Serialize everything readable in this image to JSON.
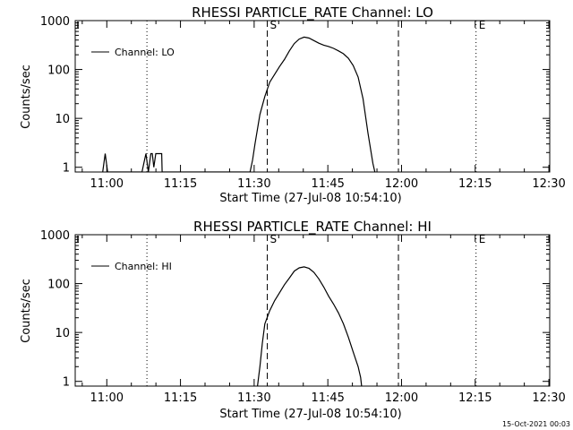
{
  "footer_timestamp": "15-Oct-2021 00:03",
  "chart_data": [
    {
      "type": "line",
      "title": "RHESSI PARTICLE_RATE Channel: LO",
      "xlabel": "Start Time (27-Jul-08 10:54:10)",
      "ylabel": "Counts/sec",
      "yscale": "log",
      "xlim": [
        -0.6,
        96.0
      ],
      "ylim": [
        0.8,
        1000
      ],
      "xticks": [
        {
          "min": 5.83,
          "label": "11:00"
        },
        {
          "min": 20.83,
          "label": "11:15"
        },
        {
          "min": 35.83,
          "label": "11:30"
        },
        {
          "min": 50.83,
          "label": "11:45"
        },
        {
          "min": 65.83,
          "label": "12:00"
        },
        {
          "min": 80.83,
          "label": "12:15"
        },
        {
          "min": 95.83,
          "label": "12:30"
        }
      ],
      "yticks": [
        {
          "value": 1,
          "label": "1"
        },
        {
          "value": 10,
          "label": "10"
        },
        {
          "value": 100,
          "label": "100"
        },
        {
          "value": 1000,
          "label": "1000"
        }
      ],
      "legend": {
        "label": "Channel: LO",
        "position": "top-left"
      },
      "vlines": [
        {
          "min": 14.0,
          "style": "dotted",
          "label": ""
        },
        {
          "min": 38.5,
          "style": "dashed",
          "label": "S"
        },
        {
          "min": 65.2,
          "style": "dashed",
          "label": ""
        },
        {
          "min": 81.0,
          "style": "dotted",
          "label": "E"
        },
        {
          "min": 96.0,
          "style": "dotted",
          "label": ""
        }
      ],
      "series": [
        {
          "name": "Channel: LO",
          "points": [
            [
              5.0,
              0.8
            ],
            [
              5.5,
              1.9
            ],
            [
              6.0,
              0.8
            ],
            [
              13.0,
              0.8
            ],
            [
              13.5,
              1.4
            ],
            [
              13.8,
              1.9
            ],
            [
              14.3,
              0.8
            ],
            [
              14.8,
              1.9
            ],
            [
              15.1,
              1.9
            ],
            [
              15.4,
              1.0
            ],
            [
              15.8,
              1.9
            ],
            [
              17.0,
              1.9
            ],
            [
              17.1,
              0.8
            ],
            [
              35.0,
              0.8
            ],
            [
              35.5,
              1.4
            ],
            [
              36.0,
              3.0
            ],
            [
              37.0,
              12
            ],
            [
              38.0,
              28
            ],
            [
              39.0,
              55
            ],
            [
              40.0,
              80
            ],
            [
              41.0,
              115
            ],
            [
              42.0,
              160
            ],
            [
              43.0,
              240
            ],
            [
              44.0,
              340
            ],
            [
              45.0,
              420
            ],
            [
              46.0,
              460
            ],
            [
              47.0,
              440
            ],
            [
              48.0,
              390
            ],
            [
              49.0,
              345
            ],
            [
              50.0,
              315
            ],
            [
              51.0,
              295
            ],
            [
              52.0,
              270
            ],
            [
              53.0,
              240
            ],
            [
              54.0,
              210
            ],
            [
              55.0,
              170
            ],
            [
              56.0,
              120
            ],
            [
              57.0,
              70
            ],
            [
              58.0,
              25
            ],
            [
              59.0,
              5
            ],
            [
              60.0,
              1.2
            ],
            [
              60.4,
              0.8
            ]
          ]
        }
      ]
    },
    {
      "type": "line",
      "title": "RHESSI PARTICLE_RATE Channel: HI",
      "xlabel": "Start Time (27-Jul-08 10:54:10)",
      "ylabel": "Counts/sec",
      "yscale": "log",
      "xlim": [
        -0.6,
        96.0
      ],
      "ylim": [
        0.8,
        1000
      ],
      "xticks": [
        {
          "min": 5.83,
          "label": "11:00"
        },
        {
          "min": 20.83,
          "label": "11:15"
        },
        {
          "min": 35.83,
          "label": "11:30"
        },
        {
          "min": 50.83,
          "label": "11:45"
        },
        {
          "min": 65.83,
          "label": "12:00"
        },
        {
          "min": 80.83,
          "label": "12:15"
        },
        {
          "min": 95.83,
          "label": "12:30"
        }
      ],
      "yticks": [
        {
          "value": 1,
          "label": "1"
        },
        {
          "value": 10,
          "label": "10"
        },
        {
          "value": 100,
          "label": "100"
        },
        {
          "value": 1000,
          "label": "1000"
        }
      ],
      "legend": {
        "label": "Channel: HI",
        "position": "top-left"
      },
      "vlines": [
        {
          "min": 14.0,
          "style": "dotted",
          "label": ""
        },
        {
          "min": 38.5,
          "style": "dashed",
          "label": "S"
        },
        {
          "min": 65.2,
          "style": "dashed",
          "label": ""
        },
        {
          "min": 81.0,
          "style": "dotted",
          "label": "E"
        },
        {
          "min": 96.0,
          "style": "dotted",
          "label": ""
        }
      ],
      "series": [
        {
          "name": "Channel: HI",
          "points": [
            [
              36.5,
              0.8
            ],
            [
              37.0,
              2
            ],
            [
              37.5,
              6
            ],
            [
              38.0,
              15
            ],
            [
              39.0,
              28
            ],
            [
              40.0,
              45
            ],
            [
              41.0,
              65
            ],
            [
              42.0,
              95
            ],
            [
              43.0,
              130
            ],
            [
              44.0,
              180
            ],
            [
              45.0,
              210
            ],
            [
              46.0,
              220
            ],
            [
              47.0,
              205
            ],
            [
              48.0,
              170
            ],
            [
              49.0,
              125
            ],
            [
              50.0,
              85
            ],
            [
              51.0,
              55
            ],
            [
              52.0,
              38
            ],
            [
              53.0,
              25
            ],
            [
              54.0,
              15
            ],
            [
              55.0,
              8
            ],
            [
              56.0,
              4
            ],
            [
              57.0,
              2
            ],
            [
              57.5,
              1.2
            ],
            [
              57.7,
              0.8
            ]
          ]
        }
      ]
    }
  ]
}
